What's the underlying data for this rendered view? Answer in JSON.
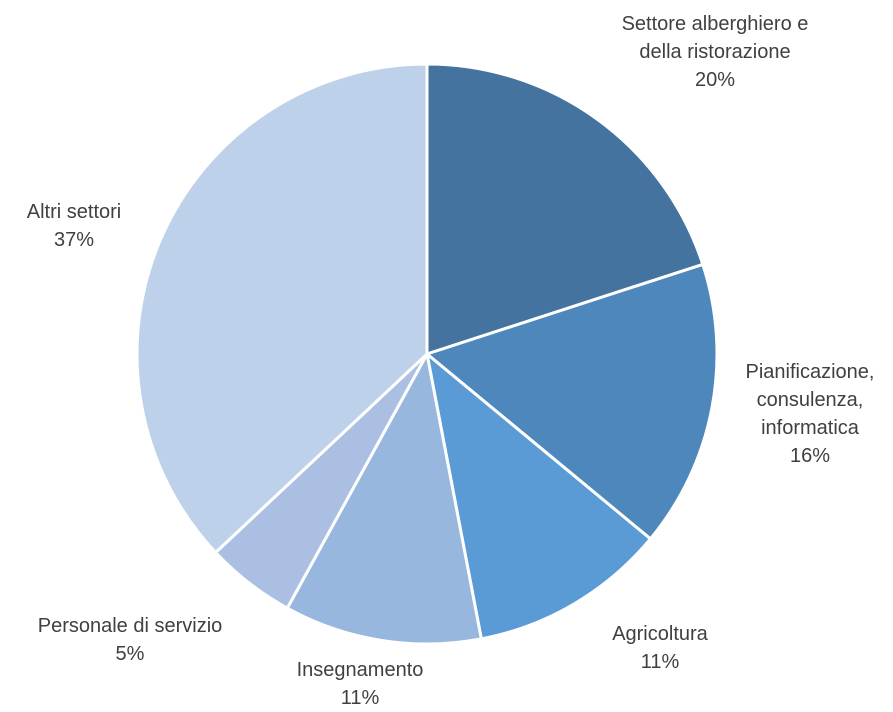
{
  "chart_data": {
    "type": "pie",
    "title": "",
    "slices": [
      {
        "name_lines": [
          "Settore alberghiero e",
          "della ristorazione"
        ],
        "value": 20,
        "value_label": "20%",
        "color": "#44739F"
      },
      {
        "name_lines": [
          "Pianificazione,",
          "consulenza,",
          "informatica"
        ],
        "value": 16,
        "value_label": "16%",
        "color": "#4E87BC"
      },
      {
        "name_lines": [
          "Agricoltura"
        ],
        "value": 11,
        "value_label": "11%",
        "color": "#5A9BD6"
      },
      {
        "name_lines": [
          "Insegnamento"
        ],
        "value": 11,
        "value_label": "11%",
        "color": "#98B7DE"
      },
      {
        "name_lines": [
          "Personale di servizio"
        ],
        "value": 5,
        "value_label": "5%",
        "color": "#AABFE2"
      },
      {
        "name_lines": [
          "Altri settori"
        ],
        "value": 37,
        "value_label": "37%",
        "color": "#BED1EA"
      }
    ],
    "start_angle_deg": 0,
    "direction": "clockwise",
    "legend": "none"
  }
}
